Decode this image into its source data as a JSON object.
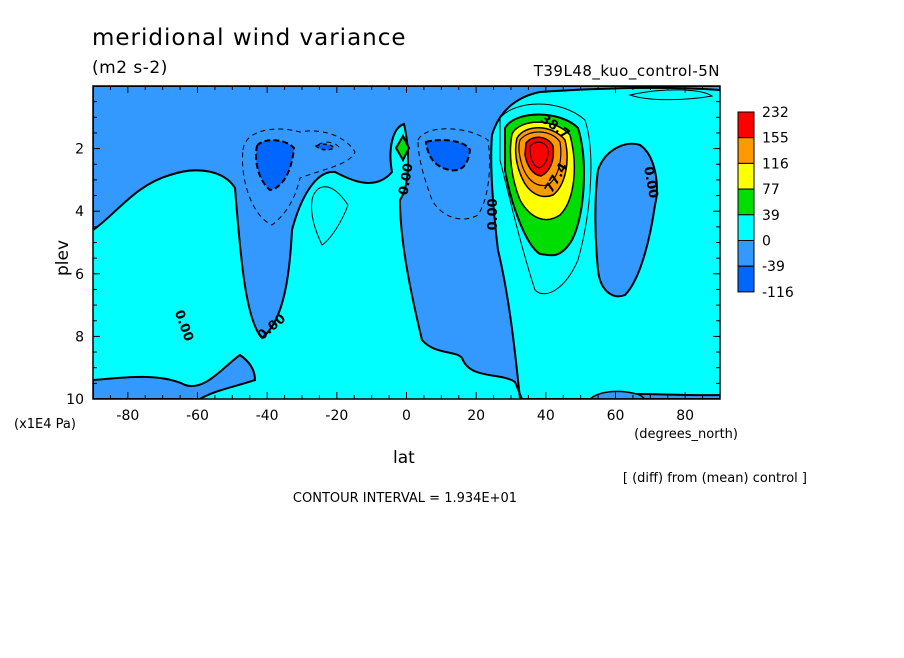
{
  "chart_data": {
    "type": "heatmap",
    "subtype": "filled-contour",
    "title": "meridional wind variance",
    "units": "(m2 s-2)",
    "run_label": "T39L48_kuo_control-5N",
    "xlabel": "lat",
    "x_units": "(degrees_north)",
    "ylabel": "plev",
    "y_units": "(x1E4 Pa)",
    "diff_note": "[ (diff) from (mean) control ]",
    "contour_interval": "CONTOUR INTERVAL = 1.934E+01",
    "xlim": [
      -90,
      90
    ],
    "ylim": [
      10,
      0
    ],
    "x_ticks": [
      -80,
      -60,
      -40,
      -20,
      0,
      20,
      40,
      60,
      80
    ],
    "x_tick_labels": [
      "-80",
      "-60",
      "-40",
      "-20",
      "0",
      "20",
      "40",
      "60",
      "80"
    ],
    "y_ticks": [
      2,
      4,
      6,
      8,
      10
    ],
    "y_tick_labels": [
      "2",
      "4",
      "6",
      "8",
      "10"
    ],
    "colorbar": {
      "labels": [
        "232",
        "155",
        "116",
        "77",
        "39",
        "0",
        "-39",
        "-116"
      ],
      "colors": [
        "#ff0000",
        "#ff9900",
        "#ffff00",
        "#00dd00",
        "#00ffff",
        "#3399ff",
        "#0066ff"
      ]
    },
    "level_colors": {
      "l0": "#0066ff",
      "l1": "#3399ff",
      "l2": "#00ffff",
      "l3": "#00dd00",
      "l4": "#ffff00",
      "l5": "#ff9900",
      "l6": "#ff0000",
      "l7": "#ff0000"
    },
    "contour_labels": [
      "0.00",
      "0.00",
      "0.00",
      "0.00",
      "0.00",
      "38.7",
      "77.4"
    ],
    "features": [
      {
        "name": "positive maximum",
        "lat": 37,
        "plev": 2.5,
        "value": 232
      },
      {
        "name": "negative minimum",
        "lat": -36,
        "plev": 2.7,
        "value": -116
      },
      {
        "name": "negative minimum",
        "lat": 12,
        "plev": 2.4,
        "value": -116
      },
      {
        "name": "small positive",
        "lat": -1,
        "plev": 2.2,
        "value": 39
      }
    ]
  }
}
